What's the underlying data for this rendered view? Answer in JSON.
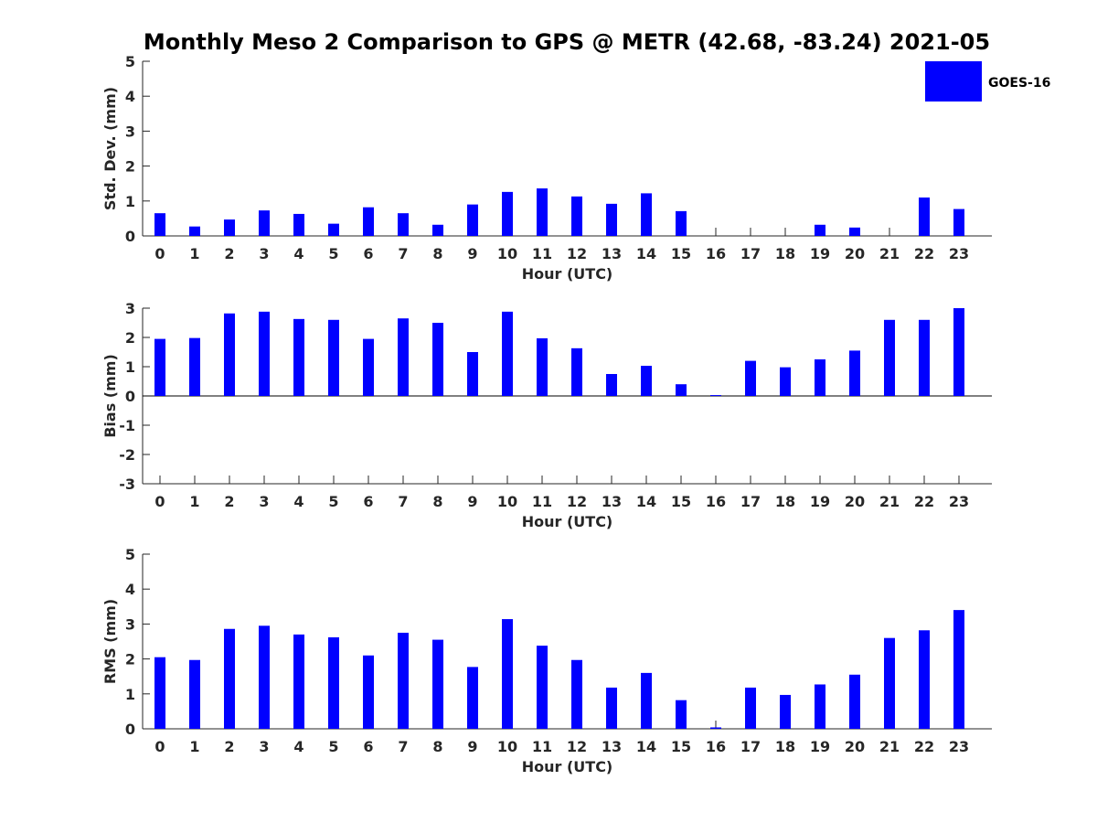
{
  "title": "Monthly Meso 2 Comparison to GPS @ METR (42.68, -83.24) 2021-05",
  "colors": {
    "bar": "#0000ff",
    "axis": "#262626"
  },
  "legend": {
    "label": "GOES-16",
    "placement": "top-right"
  },
  "chart_data": [
    {
      "type": "bar",
      "xlabel": "Hour (UTC)",
      "ylabel": "Std. Dev. (mm)",
      "ylim": [
        0,
        5
      ],
      "yticks": [
        0,
        1,
        2,
        3,
        4,
        5
      ],
      "categories": [
        "0",
        "1",
        "2",
        "3",
        "4",
        "5",
        "6",
        "7",
        "8",
        "9",
        "10",
        "11",
        "12",
        "13",
        "14",
        "15",
        "16",
        "17",
        "18",
        "19",
        "20",
        "21",
        "22",
        "23"
      ],
      "series": [
        {
          "name": "GOES-16",
          "values": [
            0.65,
            0.27,
            0.47,
            0.73,
            0.63,
            0.35,
            0.82,
            0.65,
            0.32,
            0.9,
            1.26,
            1.36,
            1.13,
            0.92,
            1.22,
            0.71,
            0,
            0,
            0,
            0.32,
            0.24,
            0,
            1.1,
            0.77
          ]
        }
      ]
    },
    {
      "type": "bar",
      "xlabel": "Hour (UTC)",
      "ylabel": "Bias (mm)",
      "ylim": [
        -3,
        3
      ],
      "yticks": [
        -3,
        -2,
        -1,
        0,
        1,
        2,
        3
      ],
      "categories": [
        "0",
        "1",
        "2",
        "3",
        "4",
        "5",
        "6",
        "7",
        "8",
        "9",
        "10",
        "11",
        "12",
        "13",
        "14",
        "15",
        "16",
        "17",
        "18",
        "19",
        "20",
        "21",
        "22",
        "23"
      ],
      "series": [
        {
          "name": "GOES-16",
          "values": [
            1.95,
            1.98,
            2.82,
            2.88,
            2.63,
            2.6,
            1.95,
            2.65,
            2.5,
            1.5,
            2.88,
            1.97,
            1.63,
            0.75,
            1.03,
            0.4,
            0.03,
            1.2,
            0.98,
            1.25,
            1.55,
            2.6,
            2.6,
            3.0
          ]
        }
      ]
    },
    {
      "type": "bar",
      "xlabel": "Hour (UTC)",
      "ylabel": "RMS (mm)",
      "ylim": [
        0,
        5
      ],
      "yticks": [
        0,
        1,
        2,
        3,
        4,
        5
      ],
      "categories": [
        "0",
        "1",
        "2",
        "3",
        "4",
        "5",
        "6",
        "7",
        "8",
        "9",
        "10",
        "11",
        "12",
        "13",
        "14",
        "15",
        "16",
        "17",
        "18",
        "19",
        "20",
        "21",
        "22",
        "23"
      ],
      "series": [
        {
          "name": "GOES-16",
          "values": [
            2.05,
            1.97,
            2.86,
            2.95,
            2.7,
            2.62,
            2.1,
            2.75,
            2.55,
            1.77,
            3.14,
            2.38,
            1.97,
            1.18,
            1.6,
            0.82,
            0.04,
            1.18,
            0.97,
            1.27,
            1.55,
            2.6,
            2.82,
            3.4
          ]
        }
      ]
    }
  ]
}
